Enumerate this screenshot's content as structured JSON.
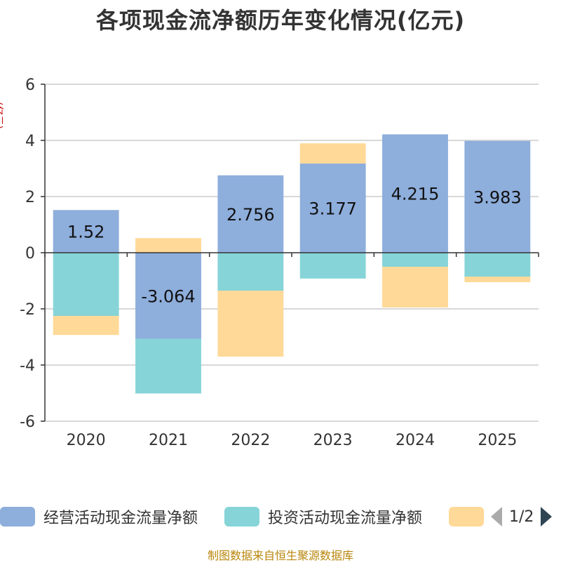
{
  "title": "各项现金流净额历年变化情况(亿元)",
  "unit_label": "(亿元)",
  "source": "制图数据来自恒生聚源数据库",
  "legend": {
    "items": [
      {
        "label": "经营活动现金流量净额",
        "color": "#8eaedc"
      },
      {
        "label": "投资活动现金流量净额",
        "color": "#86d4d8"
      },
      {
        "label": "",
        "color": "#ffd998"
      }
    ],
    "page": "1/2"
  },
  "chart_data": {
    "type": "bar",
    "stacked": true,
    "categories": [
      "2020",
      "2021",
      "2022",
      "2023",
      "2024",
      "2025"
    ],
    "ylim": [
      -6,
      6
    ],
    "yticks": [
      -6,
      -4,
      -2,
      0,
      2,
      4,
      6
    ],
    "series": [
      {
        "name": "经营活动现金流量净额",
        "color": "#8eaedc",
        "values": [
          1.52,
          -3.064,
          2.756,
          3.177,
          4.215,
          3.983
        ],
        "labels": [
          "1.52",
          "-3.064",
          "2.756",
          "3.177",
          "4.215",
          "3.983"
        ]
      },
      {
        "name": "投资活动现金流量净额",
        "color": "#86d4d8",
        "values": [
          -2.25,
          -1.95,
          -1.35,
          -0.92,
          -0.5,
          -0.85
        ]
      },
      {
        "name": "",
        "color": "#ffd998",
        "values": [
          -0.68,
          0.52,
          -2.35,
          0.72,
          -1.45,
          -0.2
        ]
      }
    ]
  }
}
